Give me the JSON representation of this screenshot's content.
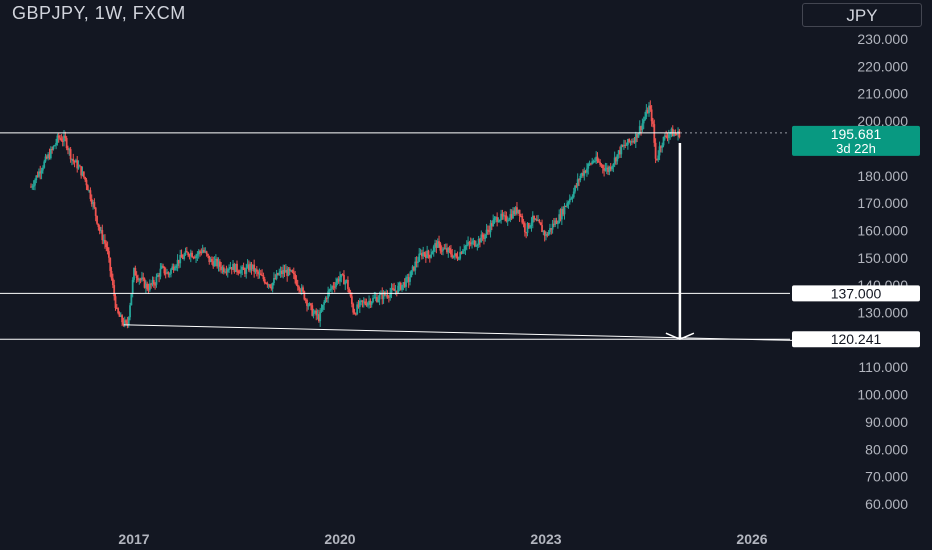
{
  "header": {
    "title": "GBPJPY, 1W, FXCM",
    "currency": "JPY"
  },
  "colors": {
    "bg": "#131722",
    "up": "#26a69a",
    "down": "#ef5350",
    "text": "#b2b5be",
    "line": "#ffffff",
    "price_tag": "#089981"
  },
  "chart_data": {
    "type": "candlestick",
    "y_ticks": [
      "230.000",
      "220.000",
      "210.000",
      "200.000",
      "190.000",
      "180.000",
      "170.000",
      "160.000",
      "150.000",
      "140.000",
      "130.000",
      "120.000",
      "110.000",
      "100.000",
      "90.000",
      "80.000",
      "70.000",
      "60.000"
    ],
    "y_values": [
      230,
      220,
      210,
      200,
      190,
      180,
      170,
      160,
      150,
      140,
      130,
      120,
      110,
      100,
      90,
      80,
      70,
      60
    ],
    "x_ticks": [
      "2017",
      "2020",
      "2023",
      "2026"
    ],
    "x_tick_years": [
      2017,
      2020,
      2023,
      2026
    ],
    "current_price": {
      "value": "195.681",
      "countdown": "3d 22h",
      "price": 195.681
    },
    "horizontal_levels": [
      {
        "label": "137.000",
        "price": 137.0
      },
      {
        "label": "120.241",
        "price": 120.241
      }
    ],
    "resistance_price": 195.7,
    "trendline": {
      "start": {
        "year": 2016.85,
        "price": 125.5
      },
      "end": {
        "year": 2026.6,
        "price": 119.8
      }
    },
    "projection": {
      "from": {
        "year": 2024.95,
        "price": 192.0
      },
      "to": {
        "year": 2024.95,
        "price": 120.241
      }
    },
    "price_path": [
      [
        2015.5,
        176
      ],
      [
        2015.65,
        183
      ],
      [
        2015.8,
        189
      ],
      [
        2015.9,
        194
      ],
      [
        2016.0,
        193
      ],
      [
        2016.1,
        186
      ],
      [
        2016.2,
        183
      ],
      [
        2016.3,
        178
      ],
      [
        2016.4,
        170
      ],
      [
        2016.5,
        160
      ],
      [
        2016.6,
        154
      ],
      [
        2016.7,
        138
      ],
      [
        2016.75,
        130
      ],
      [
        2016.82,
        127
      ],
      [
        2016.9,
        125
      ],
      [
        2016.95,
        135
      ],
      [
        2017.0,
        145
      ],
      [
        2017.1,
        142
      ],
      [
        2017.2,
        139
      ],
      [
        2017.3,
        141
      ],
      [
        2017.4,
        146
      ],
      [
        2017.5,
        144
      ],
      [
        2017.6,
        148
      ],
      [
        2017.7,
        150
      ],
      [
        2017.8,
        152
      ],
      [
        2017.9,
        151
      ],
      [
        2018.0,
        153
      ],
      [
        2018.1,
        149
      ],
      [
        2018.2,
        148
      ],
      [
        2018.3,
        146
      ],
      [
        2018.4,
        147
      ],
      [
        2018.5,
        146
      ],
      [
        2018.6,
        145
      ],
      [
        2018.7,
        147
      ],
      [
        2018.8,
        144
      ],
      [
        2018.9,
        142
      ],
      [
        2019.0,
        140
      ],
      [
        2019.1,
        144
      ],
      [
        2019.2,
        145
      ],
      [
        2019.3,
        144
      ],
      [
        2019.4,
        140
      ],
      [
        2019.5,
        135
      ],
      [
        2019.6,
        130
      ],
      [
        2019.7,
        128
      ],
      [
        2019.8,
        136
      ],
      [
        2019.9,
        140
      ],
      [
        2020.0,
        143
      ],
      [
        2020.1,
        141
      ],
      [
        2020.2,
        130
      ],
      [
        2020.3,
        133
      ],
      [
        2020.4,
        134
      ],
      [
        2020.5,
        135
      ],
      [
        2020.6,
        136
      ],
      [
        2020.7,
        137
      ],
      [
        2020.8,
        138
      ],
      [
        2020.9,
        140
      ],
      [
        2021.0,
        142
      ],
      [
        2021.1,
        148
      ],
      [
        2021.2,
        152
      ],
      [
        2021.3,
        151
      ],
      [
        2021.4,
        155
      ],
      [
        2021.5,
        153
      ],
      [
        2021.6,
        152
      ],
      [
        2021.7,
        150
      ],
      [
        2021.8,
        154
      ],
      [
        2021.9,
        155
      ],
      [
        2022.0,
        156
      ],
      [
        2022.1,
        158
      ],
      [
        2022.2,
        162
      ],
      [
        2022.3,
        165
      ],
      [
        2022.4,
        164
      ],
      [
        2022.5,
        166
      ],
      [
        2022.6,
        168
      ],
      [
        2022.7,
        160
      ],
      [
        2022.8,
        164
      ],
      [
        2022.9,
        162
      ],
      [
        2023.0,
        158
      ],
      [
        2023.1,
        162
      ],
      [
        2023.2,
        165
      ],
      [
        2023.3,
        170
      ],
      [
        2023.4,
        174
      ],
      [
        2023.5,
        180
      ],
      [
        2023.6,
        183
      ],
      [
        2023.7,
        186
      ],
      [
        2023.8,
        184
      ],
      [
        2023.9,
        182
      ],
      [
        2024.0,
        186
      ],
      [
        2024.1,
        190
      ],
      [
        2024.2,
        192
      ],
      [
        2024.3,
        194
      ],
      [
        2024.4,
        199
      ],
      [
        2024.5,
        205
      ],
      [
        2024.55,
        200
      ],
      [
        2024.6,
        185
      ],
      [
        2024.65,
        190
      ],
      [
        2024.7,
        193
      ],
      [
        2024.8,
        196
      ],
      [
        2024.9,
        195
      ],
      [
        2024.95,
        195.7
      ]
    ]
  }
}
